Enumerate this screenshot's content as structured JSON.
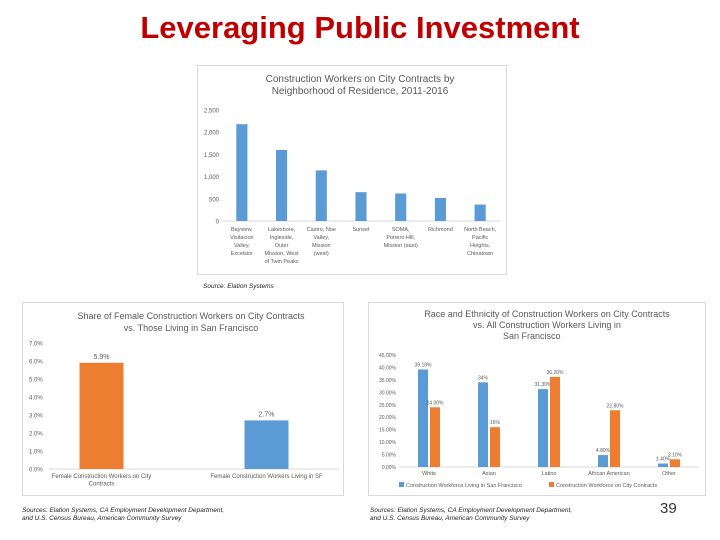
{
  "slide": {
    "title": "Leveraging Public Investment",
    "source_1": "Source: Elation Systems",
    "source_2_line1": "Sources: Elation Systems, CA Employment Development Department,",
    "source_2_line2": "and U.S. Census Bureau, American Community Survey",
    "source_3_line1": "Sources: Elation Systems, CA Employment Development Department,",
    "source_3_line2": "and U.S. Census Bureau, American Community Survey",
    "page_number": "39"
  },
  "colors": {
    "title": "#c00000",
    "blue": "#5b9bd5",
    "orange": "#ed7d31",
    "axis_text": "#595959",
    "grid": "#d9d9d9"
  },
  "chart_data": [
    {
      "type": "bar",
      "title_lines": [
        "Construction Workers on City Contracts by",
        "Neighborhood of Residence, 2011-2016"
      ],
      "categories": [
        [
          "Bayview,",
          "Visitacion",
          "Valley,",
          "Excelsior"
        ],
        [
          "Lakeshore,",
          "Ingleside,",
          "Outer",
          "Mission, West",
          "of Twin Peaks"
        ],
        [
          "Castro, Noe",
          "Valley,",
          "Mission",
          "(west)"
        ],
        [
          "Sunset"
        ],
        [
          "SOMA,",
          "Potrero Hill,",
          "Mission (east)"
        ],
        [
          "Richmond"
        ],
        [
          "North Beach,",
          "Pacific",
          "Heights,",
          "Chinatown"
        ]
      ],
      "values": [
        2180,
        1600,
        1140,
        650,
        620,
        520,
        370
      ],
      "ylim": [
        0,
        2500
      ],
      "yticks": [
        "2,500",
        "2,000",
        "1,500",
        "1,000",
        "500",
        "0"
      ],
      "series_color": "#5b9bd5",
      "grid": false,
      "legend": "none"
    },
    {
      "type": "bar",
      "title_lines": [
        "Share of Female Construction Workers on City Contracts",
        "vs. Those Living in San Francisco"
      ],
      "categories": [
        [
          "Female Construction Workers on City",
          "Contracts"
        ],
        [
          "Female Construction Workers Living in SF"
        ]
      ],
      "values": [
        5.9,
        2.7
      ],
      "value_labels": [
        "5.9%",
        "2.7%"
      ],
      "bar_colors": [
        "#ed7d31",
        "#5b9bd5"
      ],
      "ylim": [
        0,
        7
      ],
      "yticks": [
        "7.0%",
        "6.0%",
        "5.0%",
        "4.0%",
        "3.0%",
        "2.0%",
        "1.0%",
        "0.0%"
      ],
      "grid": false,
      "legend": "none"
    },
    {
      "type": "bar",
      "title_lines": [
        "Race and Ethnicity of Construction Workers on City Contracts",
        "vs. All Construction Workers Living in",
        "San Francisco"
      ],
      "categories": [
        "White",
        "Asian",
        "Latino",
        "African American",
        "Other"
      ],
      "series": [
        {
          "name": "Construction Workforce Living in San Francisco",
          "values": [
            39.18,
            34,
            31.3,
            4.8,
            1.4
          ],
          "labels": [
            "39.18%",
            "34%",
            "31.30%",
            "4.80%",
            "1.40%"
          ],
          "color": "#5b9bd5"
        },
        {
          "name": "Construction Workforce on City Contracts",
          "values": [
            24,
            16,
            36.2,
            22.8,
            3.1
          ],
          "labels": [
            "24.00%",
            "16%",
            "36.20%",
            "22.80%",
            "3.10%"
          ],
          "color": "#ed7d31"
        }
      ],
      "ylim": [
        0,
        45
      ],
      "yticks": [
        "45.00%",
        "40.00%",
        "35.00%",
        "30.00%",
        "25.00%",
        "20.00%",
        "15.00%",
        "10.00%",
        "5.00%",
        "0.00%"
      ],
      "grid": false,
      "legend": "bottom"
    }
  ]
}
